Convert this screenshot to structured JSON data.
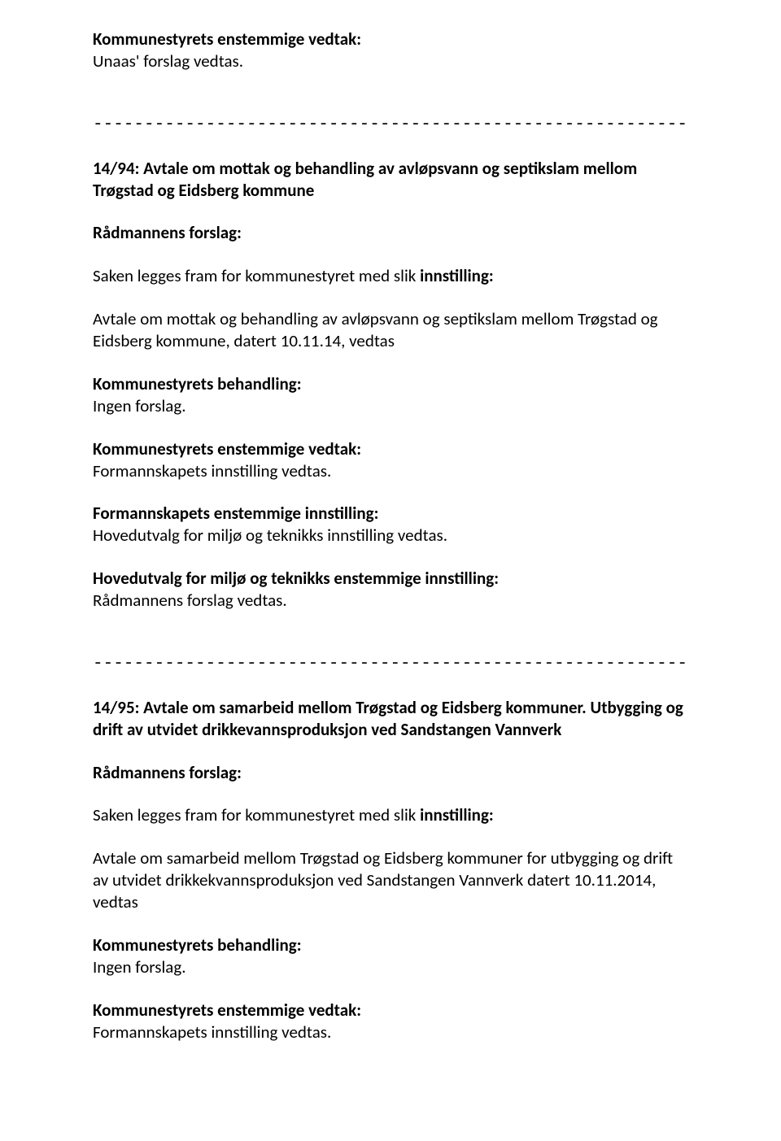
{
  "divider": "-------------------------------------------------------------------------------------------------------------------------",
  "s1": {
    "heading": "Kommunestyrets enstemmige vedtak:",
    "line": "Unaas' forslag vedtas."
  },
  "s2": {
    "title": "14/94: Avtale om mottak og behandling av avløpsvann og septikslam mellom Trøgstad og Eidsberg kommune",
    "rf_heading": "Rådmannens forslag:",
    "rf_body1a": "Saken legges fram for kommunestyret med slik ",
    "rf_body1b": "innstilling:",
    "rf_body2": "Avtale om mottak og behandling av avløpsvann og septikslam mellom Trøgstad og Eidsberg kommune, datert 10.11.14, vedtas",
    "kb_heading": "Kommunestyrets behandling:",
    "kb_body": "Ingen forslag.",
    "kev_heading": "Kommunestyrets enstemmige vedtak:",
    "kev_body": "Formannskapets innstilling vedtas.",
    "fei_heading": "Formannskapets enstemmige innstilling:",
    "fei_body": "Hovedutvalg for miljø og teknikks innstilling vedtas.",
    "hmt_heading": "Hovedutvalg for miljø og teknikks enstemmige innstilling:",
    "hmt_body": "Rådmannens forslag vedtas."
  },
  "s3": {
    "title": "14/95: Avtale om samarbeid mellom Trøgstad og Eidsberg kommuner. Utbygging og drift av utvidet drikkevannsproduksjon ved Sandstangen Vannverk",
    "rf_heading": "Rådmannens forslag:",
    "rf_body1a": "Saken legges fram for kommunestyret med slik ",
    "rf_body1b": "innstilling:",
    "rf_body2": "Avtale om samarbeid mellom Trøgstad og Eidsberg kommuner for utbygging og drift av utvidet drikkekvannsproduksjon ved Sandstangen Vannverk datert 10.11.2014, vedtas",
    "kb_heading": "Kommunestyrets behandling:",
    "kb_body": "Ingen forslag.",
    "kev_heading": "Kommunestyrets enstemmige vedtak:",
    "kev_body": "Formannskapets innstilling vedtas."
  }
}
